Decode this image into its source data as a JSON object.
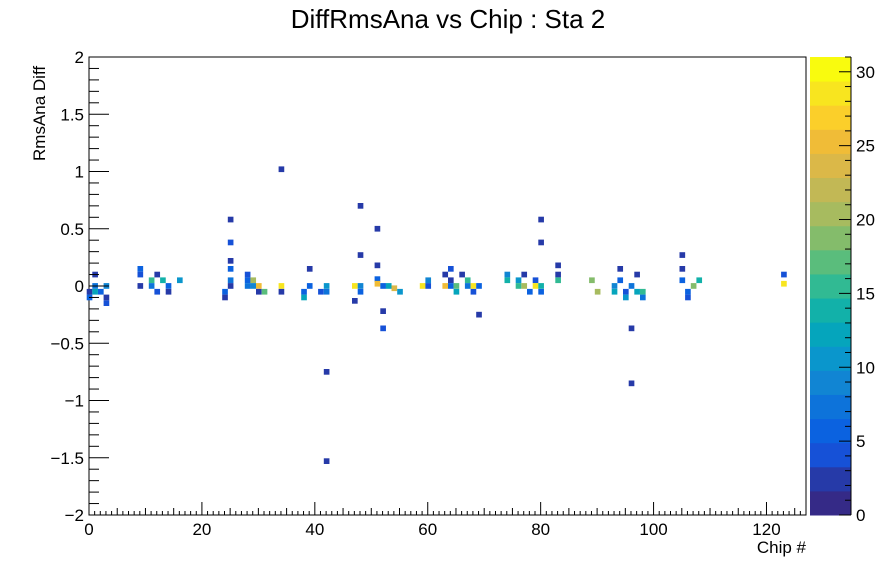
{
  "chart_data": {
    "type": "heatmap",
    "title": "DiffRmsAna vs Chip : Sta 2",
    "xlabel": "Chip #",
    "ylabel": "RmsAna Diff",
    "xlim": [
      0,
      127
    ],
    "ylim": [
      -2,
      2
    ],
    "x_ticks": [
      0,
      20,
      40,
      60,
      80,
      100,
      120
    ],
    "y_ticks": [
      -2,
      -1.5,
      -1,
      -0.5,
      0,
      0.5,
      1,
      1.5,
      2
    ],
    "y_tick_labels": [
      "−2",
      "−1.5",
      "−1",
      "−0.5",
      "0",
      "0.5",
      "1",
      "1.5",
      "2"
    ],
    "z_range": [
      0,
      31
    ],
    "z_ticks": [
      0,
      5,
      10,
      15,
      20,
      25,
      30
    ],
    "colormap": [
      "#352a87",
      "#263aa8",
      "#1651d7",
      "#0b62e0",
      "#0d73da",
      "#1185d3",
      "#0a96cc",
      "#05a5bc",
      "#12b1a9",
      "#31ba93",
      "#5abd7c",
      "#84bc6b",
      "#a7bb5f",
      "#c2b855",
      "#dbb848",
      "#f0bc37",
      "#fbcf2a",
      "#f8e51f",
      "#f9fb0e"
    ],
    "cells": [
      {
        "x": 0,
        "y": -0.05,
        "z": 3
      },
      {
        "x": 0,
        "y": -0.1,
        "z": 6
      },
      {
        "x": 1,
        "y": 0.0,
        "z": 8
      },
      {
        "x": 1,
        "y": -0.05,
        "z": 12
      },
      {
        "x": 1,
        "y": 0.1,
        "z": 2
      },
      {
        "x": 2,
        "y": -0.05,
        "z": 5
      },
      {
        "x": 3,
        "y": -0.15,
        "z": 4
      },
      {
        "x": 3,
        "y": -0.1,
        "z": 2
      },
      {
        "x": 3,
        "y": 0.0,
        "z": 9
      },
      {
        "x": 9,
        "y": 0.15,
        "z": 5
      },
      {
        "x": 9,
        "y": 0.1,
        "z": 4
      },
      {
        "x": 9,
        "y": 0.0,
        "z": 3
      },
      {
        "x": 11,
        "y": 0.05,
        "z": 16
      },
      {
        "x": 11,
        "y": 0.0,
        "z": 7
      },
      {
        "x": 12,
        "y": 0.1,
        "z": 3
      },
      {
        "x": 12,
        "y": -0.05,
        "z": 4
      },
      {
        "x": 13,
        "y": 0.05,
        "z": 14
      },
      {
        "x": 14,
        "y": 0.0,
        "z": 5
      },
      {
        "x": 14,
        "y": -0.05,
        "z": 3
      },
      {
        "x": 16,
        "y": 0.05,
        "z": 10
      },
      {
        "x": 24,
        "y": -0.05,
        "z": 6
      },
      {
        "x": 24,
        "y": -0.1,
        "z": 2
      },
      {
        "x": 25,
        "y": 0.58,
        "z": 3
      },
      {
        "x": 25,
        "y": 0.38,
        "z": 4
      },
      {
        "x": 25,
        "y": 0.22,
        "z": 3
      },
      {
        "x": 25,
        "y": 0.15,
        "z": 5
      },
      {
        "x": 25,
        "y": 0.05,
        "z": 7
      },
      {
        "x": 25,
        "y": 0.0,
        "z": 2
      },
      {
        "x": 28,
        "y": 0.1,
        "z": 4
      },
      {
        "x": 28,
        "y": 0.05,
        "z": 6
      },
      {
        "x": 28,
        "y": 0.0,
        "z": 8
      },
      {
        "x": 29,
        "y": 0.05,
        "z": 20
      },
      {
        "x": 29,
        "y": 0.0,
        "z": 9
      },
      {
        "x": 30,
        "y": 0.0,
        "z": 26
      },
      {
        "x": 30,
        "y": -0.05,
        "z": 3
      },
      {
        "x": 31,
        "y": -0.05,
        "z": 17
      },
      {
        "x": 34,
        "y": 1.02,
        "z": 2
      },
      {
        "x": 34,
        "y": 0.0,
        "z": 28
      },
      {
        "x": 34,
        "y": -0.05,
        "z": 3
      },
      {
        "x": 38,
        "y": -0.1,
        "z": 13
      },
      {
        "x": 38,
        "y": -0.05,
        "z": 6
      },
      {
        "x": 39,
        "y": 0.15,
        "z": 3
      },
      {
        "x": 39,
        "y": 0.0,
        "z": 5
      },
      {
        "x": 41,
        "y": -0.05,
        "z": 4
      },
      {
        "x": 42,
        "y": -0.75,
        "z": 2
      },
      {
        "x": 42,
        "y": -1.53,
        "z": 3
      },
      {
        "x": 42,
        "y": 0.0,
        "z": 11
      },
      {
        "x": 42,
        "y": -0.05,
        "z": 7
      },
      {
        "x": 47,
        "y": -0.13,
        "z": 3
      },
      {
        "x": 47,
        "y": 0.0,
        "z": 29
      },
      {
        "x": 48,
        "y": 0.7,
        "z": 2
      },
      {
        "x": 48,
        "y": 0.27,
        "z": 3
      },
      {
        "x": 48,
        "y": 0.0,
        "z": 9
      },
      {
        "x": 48,
        "y": -0.05,
        "z": 5
      },
      {
        "x": 51,
        "y": 0.5,
        "z": 3
      },
      {
        "x": 51,
        "y": 0.18,
        "z": 2
      },
      {
        "x": 51,
        "y": 0.06,
        "z": 5
      },
      {
        "x": 51,
        "y": 0.02,
        "z": 26
      },
      {
        "x": 52,
        "y": -0.22,
        "z": 3
      },
      {
        "x": 52,
        "y": -0.37,
        "z": 4
      },
      {
        "x": 52,
        "y": 0.0,
        "z": 6
      },
      {
        "x": 53,
        "y": 0.0,
        "z": 13
      },
      {
        "x": 54,
        "y": -0.02,
        "z": 24
      },
      {
        "x": 55,
        "y": -0.05,
        "z": 10
      },
      {
        "x": 59,
        "y": 0.0,
        "z": 28
      },
      {
        "x": 60,
        "y": 0.05,
        "z": 9
      },
      {
        "x": 60,
        "y": 0.0,
        "z": 4
      },
      {
        "x": 63,
        "y": 0.1,
        "z": 3
      },
      {
        "x": 63,
        "y": 0.0,
        "z": 26
      },
      {
        "x": 64,
        "y": 0.15,
        "z": 4
      },
      {
        "x": 64,
        "y": 0.05,
        "z": 3
      },
      {
        "x": 64,
        "y": 0.0,
        "z": 6
      },
      {
        "x": 65,
        "y": 0.0,
        "z": 17
      },
      {
        "x": 65,
        "y": -0.05,
        "z": 13
      },
      {
        "x": 66,
        "y": 0.1,
        "z": 3
      },
      {
        "x": 67,
        "y": 0.05,
        "z": 15
      },
      {
        "x": 67,
        "y": 0.0,
        "z": 7
      },
      {
        "x": 68,
        "y": 0.0,
        "z": 29
      },
      {
        "x": 68,
        "y": -0.05,
        "z": 4
      },
      {
        "x": 69,
        "y": -0.25,
        "z": 3
      },
      {
        "x": 69,
        "y": 0.0,
        "z": 5
      },
      {
        "x": 74,
        "y": 0.1,
        "z": 9
      },
      {
        "x": 74,
        "y": 0.05,
        "z": 14
      },
      {
        "x": 76,
        "y": 0.05,
        "z": 11
      },
      {
        "x": 76,
        "y": 0.0,
        "z": 16
      },
      {
        "x": 77,
        "y": 0.1,
        "z": 3
      },
      {
        "x": 77,
        "y": 0.0,
        "z": 21
      },
      {
        "x": 78,
        "y": -0.05,
        "z": 6
      },
      {
        "x": 79,
        "y": 0.05,
        "z": 4
      },
      {
        "x": 79,
        "y": 0.0,
        "z": 29
      },
      {
        "x": 80,
        "y": 0.58,
        "z": 3
      },
      {
        "x": 80,
        "y": 0.38,
        "z": 3
      },
      {
        "x": 80,
        "y": 0.0,
        "z": 14
      },
      {
        "x": 80,
        "y": -0.05,
        "z": 5
      },
      {
        "x": 83,
        "y": 0.18,
        "z": 3
      },
      {
        "x": 83,
        "y": 0.1,
        "z": 2
      },
      {
        "x": 83,
        "y": 0.05,
        "z": 16
      },
      {
        "x": 89,
        "y": 0.05,
        "z": 18
      },
      {
        "x": 90,
        "y": -0.05,
        "z": 20
      },
      {
        "x": 93,
        "y": 0.0,
        "z": 9
      },
      {
        "x": 93,
        "y": -0.05,
        "z": 13
      },
      {
        "x": 94,
        "y": 0.15,
        "z": 3
      },
      {
        "x": 94,
        "y": 0.05,
        "z": 6
      },
      {
        "x": 95,
        "y": -0.05,
        "z": 4
      },
      {
        "x": 95,
        "y": -0.1,
        "z": 10
      },
      {
        "x": 96,
        "y": -0.37,
        "z": 3
      },
      {
        "x": 96,
        "y": -0.85,
        "z": 2
      },
      {
        "x": 96,
        "y": 0.0,
        "z": 7
      },
      {
        "x": 97,
        "y": 0.1,
        "z": 3
      },
      {
        "x": 97,
        "y": -0.05,
        "z": 12
      },
      {
        "x": 98,
        "y": -0.05,
        "z": 15
      },
      {
        "x": 98,
        "y": -0.1,
        "z": 8
      },
      {
        "x": 105,
        "y": 0.27,
        "z": 3
      },
      {
        "x": 105,
        "y": 0.15,
        "z": 3
      },
      {
        "x": 105,
        "y": 0.05,
        "z": 6
      },
      {
        "x": 106,
        "y": -0.05,
        "z": 5
      },
      {
        "x": 106,
        "y": -0.1,
        "z": 4
      },
      {
        "x": 107,
        "y": 0.0,
        "z": 19
      },
      {
        "x": 108,
        "y": 0.05,
        "z": 14
      },
      {
        "x": 123,
        "y": 0.1,
        "z": 4
      },
      {
        "x": 123,
        "y": 0.02,
        "z": 29
      }
    ]
  }
}
